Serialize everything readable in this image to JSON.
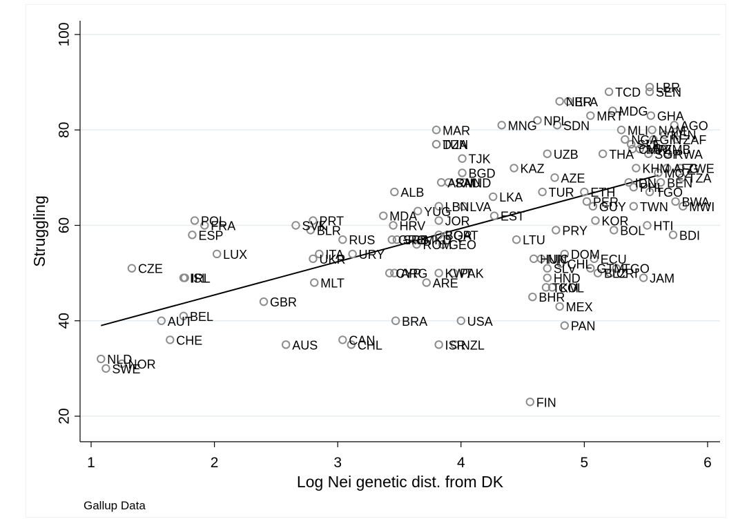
{
  "note": "Gallup Data",
  "chart_data": {
    "type": "scatter",
    "xlabel": "Log Nei genetic dist. from DK",
    "ylabel": "Struggling",
    "xlim": [
      0.9,
      6.1
    ],
    "ylim": [
      15,
      102
    ],
    "x_ticks": [
      1,
      2,
      3,
      4,
      5,
      6
    ],
    "y_ticks": [
      20,
      40,
      60,
      80,
      100
    ],
    "grid": "horizontal",
    "marker": "hollow circle",
    "colors": {
      "marker": "#8c8c8c",
      "fit_line": "#000000",
      "grid": "#e6ebf0"
    },
    "fit_line": {
      "x": [
        1.08,
        5.6
      ],
      "y": [
        39,
        70.5
      ]
    },
    "points": [
      {
        "x": 1.08,
        "y": 32,
        "label": "NLD"
      },
      {
        "x": 1.12,
        "y": 30,
        "label": "SWE"
      },
      {
        "x": 1.25,
        "y": 31,
        "label": "NOR"
      },
      {
        "x": 1.33,
        "y": 51,
        "label": "CZE"
      },
      {
        "x": 1.57,
        "y": 40,
        "label": "AUT"
      },
      {
        "x": 1.64,
        "y": 36,
        "label": "CHE"
      },
      {
        "x": 1.75,
        "y": 41,
        "label": "BEL"
      },
      {
        "x": 1.75,
        "y": 49,
        "label": "ISL"
      },
      {
        "x": 1.76,
        "y": 49,
        "label": "IRL"
      },
      {
        "x": 1.82,
        "y": 58,
        "label": "ESP"
      },
      {
        "x": 1.84,
        "y": 61,
        "label": "POL"
      },
      {
        "x": 1.92,
        "y": 60,
        "label": "FRA"
      },
      {
        "x": 2.02,
        "y": 54,
        "label": "LUX"
      },
      {
        "x": 2.4,
        "y": 44,
        "label": "GBR"
      },
      {
        "x": 2.58,
        "y": 35,
        "label": "AUS"
      },
      {
        "x": 2.66,
        "y": 60,
        "label": "SVK"
      },
      {
        "x": 2.78,
        "y": 59,
        "label": "BLR"
      },
      {
        "x": 2.8,
        "y": 61,
        "label": "PRT"
      },
      {
        "x": 2.8,
        "y": 53,
        "label": "UKR"
      },
      {
        "x": 2.81,
        "y": 48,
        "label": "MLT"
      },
      {
        "x": 2.85,
        "y": 54,
        "label": "ITA"
      },
      {
        "x": 3.04,
        "y": 57,
        "label": "RUS"
      },
      {
        "x": 3.04,
        "y": 36,
        "label": "CAN"
      },
      {
        "x": 3.11,
        "y": 35,
        "label": "CHL"
      },
      {
        "x": 3.12,
        "y": 54,
        "label": "URY"
      },
      {
        "x": 3.37,
        "y": 62,
        "label": "MDA"
      },
      {
        "x": 3.42,
        "y": 50,
        "label": "CYP"
      },
      {
        "x": 3.44,
        "y": 57,
        "label": "GRC"
      },
      {
        "x": 3.45,
        "y": 60,
        "label": "HRV"
      },
      {
        "x": 3.46,
        "y": 67,
        "label": "ALB"
      },
      {
        "x": 3.46,
        "y": 50,
        "label": "ARG"
      },
      {
        "x": 3.47,
        "y": 40,
        "label": "BRA"
      },
      {
        "x": 3.48,
        "y": 57,
        "label": "SRB"
      },
      {
        "x": 3.64,
        "y": 56,
        "label": "ROM"
      },
      {
        "x": 3.65,
        "y": 63,
        "label": "YUG"
      },
      {
        "x": 3.65,
        "y": 57,
        "label": "MKD"
      },
      {
        "x": 3.72,
        "y": 48,
        "label": "ARE"
      },
      {
        "x": 3.8,
        "y": 80,
        "label": "MAR"
      },
      {
        "x": 3.8,
        "y": 77,
        "label": "DZA"
      },
      {
        "x": 3.8,
        "y": 77,
        "label": "TUN"
      },
      {
        "x": 3.82,
        "y": 64,
        "label": "LBN"
      },
      {
        "x": 3.82,
        "y": 61,
        "label": "JOR"
      },
      {
        "x": 3.82,
        "y": 58,
        "label": "BGR"
      },
      {
        "x": 3.82,
        "y": 50,
        "label": "KWT"
      },
      {
        "x": 3.82,
        "y": 35,
        "label": "ISR"
      },
      {
        "x": 3.84,
        "y": 69,
        "label": "ARM"
      },
      {
        "x": 3.85,
        "y": 56,
        "label": "GEO"
      },
      {
        "x": 3.89,
        "y": 58,
        "label": "QAT"
      },
      {
        "x": 3.9,
        "y": 69,
        "label": "SAU"
      },
      {
        "x": 3.94,
        "y": 50,
        "label": "PAK"
      },
      {
        "x": 3.95,
        "y": 35,
        "label": "NZL"
      },
      {
        "x": 4.0,
        "y": 40,
        "label": "USA"
      },
      {
        "x": 4.01,
        "y": 74,
        "label": "TJK"
      },
      {
        "x": 4.01,
        "y": 71,
        "label": "BGD"
      },
      {
        "x": 4.02,
        "y": 69,
        "label": "IND"
      },
      {
        "x": 4.02,
        "y": 64,
        "label": "LVA"
      },
      {
        "x": 4.26,
        "y": 66,
        "label": "LKA"
      },
      {
        "x": 4.27,
        "y": 62,
        "label": "EST"
      },
      {
        "x": 4.33,
        "y": 81,
        "label": "MNG"
      },
      {
        "x": 4.43,
        "y": 72,
        "label": "KAZ"
      },
      {
        "x": 4.45,
        "y": 57,
        "label": "LTU"
      },
      {
        "x": 4.56,
        "y": 23,
        "label": "FIN"
      },
      {
        "x": 4.58,
        "y": 45,
        "label": "BHR"
      },
      {
        "x": 4.59,
        "y": 53,
        "label": "HUN"
      },
      {
        "x": 4.62,
        "y": 82,
        "label": "NPL"
      },
      {
        "x": 4.65,
        "y": 53,
        "label": "NIC"
      },
      {
        "x": 4.66,
        "y": 67,
        "label": "TUR"
      },
      {
        "x": 4.69,
        "y": 47,
        "label": "TKM"
      },
      {
        "x": 4.7,
        "y": 51,
        "label": "SLV"
      },
      {
        "x": 4.7,
        "y": 49,
        "label": "HND"
      },
      {
        "x": 4.7,
        "y": 75,
        "label": "UZB"
      },
      {
        "x": 4.74,
        "y": 47,
        "label": "COL"
      },
      {
        "x": 4.76,
        "y": 70,
        "label": "AZE"
      },
      {
        "x": 4.77,
        "y": 59,
        "label": "PRY"
      },
      {
        "x": 4.78,
        "y": 81,
        "label": "SDN"
      },
      {
        "x": 4.8,
        "y": 43,
        "label": "MEX"
      },
      {
        "x": 4.8,
        "y": 86,
        "label": "NER"
      },
      {
        "x": 4.81,
        "y": 52,
        "label": "CHL"
      },
      {
        "x": 4.84,
        "y": 54,
        "label": "DOM"
      },
      {
        "x": 4.84,
        "y": 39,
        "label": "PAN"
      },
      {
        "x": 4.87,
        "y": 86,
        "label": "BFA"
      },
      {
        "x": 5.0,
        "y": 67,
        "label": "ETH"
      },
      {
        "x": 5.02,
        "y": 65,
        "label": "PER"
      },
      {
        "x": 5.05,
        "y": 51,
        "label": "GTM"
      },
      {
        "x": 5.05,
        "y": 83,
        "label": "MRT"
      },
      {
        "x": 5.07,
        "y": 64,
        "label": "GUY"
      },
      {
        "x": 5.08,
        "y": 53,
        "label": "ECU"
      },
      {
        "x": 5.09,
        "y": 61,
        "label": "KOR"
      },
      {
        "x": 5.11,
        "y": 50,
        "label": "BLZ"
      },
      {
        "x": 5.15,
        "y": 75,
        "label": "THA"
      },
      {
        "x": 5.2,
        "y": 88,
        "label": "TCD"
      },
      {
        "x": 5.21,
        "y": 50,
        "label": "CRI"
      },
      {
        "x": 5.24,
        "y": 59,
        "label": "BOL"
      },
      {
        "x": 5.26,
        "y": 51,
        "label": "TGO"
      },
      {
        "x": 5.23,
        "y": 84,
        "label": "MDG"
      },
      {
        "x": 5.3,
        "y": 80,
        "label": "MLI"
      },
      {
        "x": 5.33,
        "y": 78,
        "label": "NGA"
      },
      {
        "x": 5.36,
        "y": 69,
        "label": "IDN"
      },
      {
        "x": 5.38,
        "y": 77,
        "label": "SLE"
      },
      {
        "x": 5.39,
        "y": 76,
        "label": "CMR"
      },
      {
        "x": 5.4,
        "y": 64,
        "label": "TWN"
      },
      {
        "x": 5.4,
        "y": 68,
        "label": "PHL"
      },
      {
        "x": 5.45,
        "y": 76,
        "label": "MWI"
      },
      {
        "x": 5.42,
        "y": 72,
        "label": "KHM"
      },
      {
        "x": 5.48,
        "y": 49,
        "label": "JAM"
      },
      {
        "x": 5.51,
        "y": 60,
        "label": "HTI"
      },
      {
        "x": 5.52,
        "y": 75,
        "label": "SGP"
      },
      {
        "x": 5.53,
        "y": 89,
        "label": "LBR"
      },
      {
        "x": 5.53,
        "y": 88,
        "label": "SEN"
      },
      {
        "x": 5.53,
        "y": 67,
        "label": "TGO"
      },
      {
        "x": 5.54,
        "y": 83,
        "label": "GHA"
      },
      {
        "x": 5.55,
        "y": 80,
        "label": "NAM"
      },
      {
        "x": 5.56,
        "y": 78,
        "label": "GIN"
      },
      {
        "x": 5.6,
        "y": 71,
        "label": "MOZ"
      },
      {
        "x": 5.6,
        "y": 76,
        "label": "ZMB"
      },
      {
        "x": 5.62,
        "y": 69,
        "label": "BEN"
      },
      {
        "x": 5.65,
        "y": 79,
        "label": "KEN"
      },
      {
        "x": 5.67,
        "y": 72,
        "label": "AFG"
      },
      {
        "x": 5.68,
        "y": 75,
        "label": "RWA"
      },
      {
        "x": 5.72,
        "y": 58,
        "label": "BDI"
      },
      {
        "x": 5.73,
        "y": 81,
        "label": "AGO"
      },
      {
        "x": 5.74,
        "y": 65,
        "label": "BWA"
      },
      {
        "x": 5.75,
        "y": 78,
        "label": "ZAF"
      },
      {
        "x": 5.78,
        "y": 72,
        "label": "ZWE"
      },
      {
        "x": 5.79,
        "y": 70,
        "label": "TZA"
      },
      {
        "x": 5.8,
        "y": 64,
        "label": "MWI"
      }
    ]
  }
}
